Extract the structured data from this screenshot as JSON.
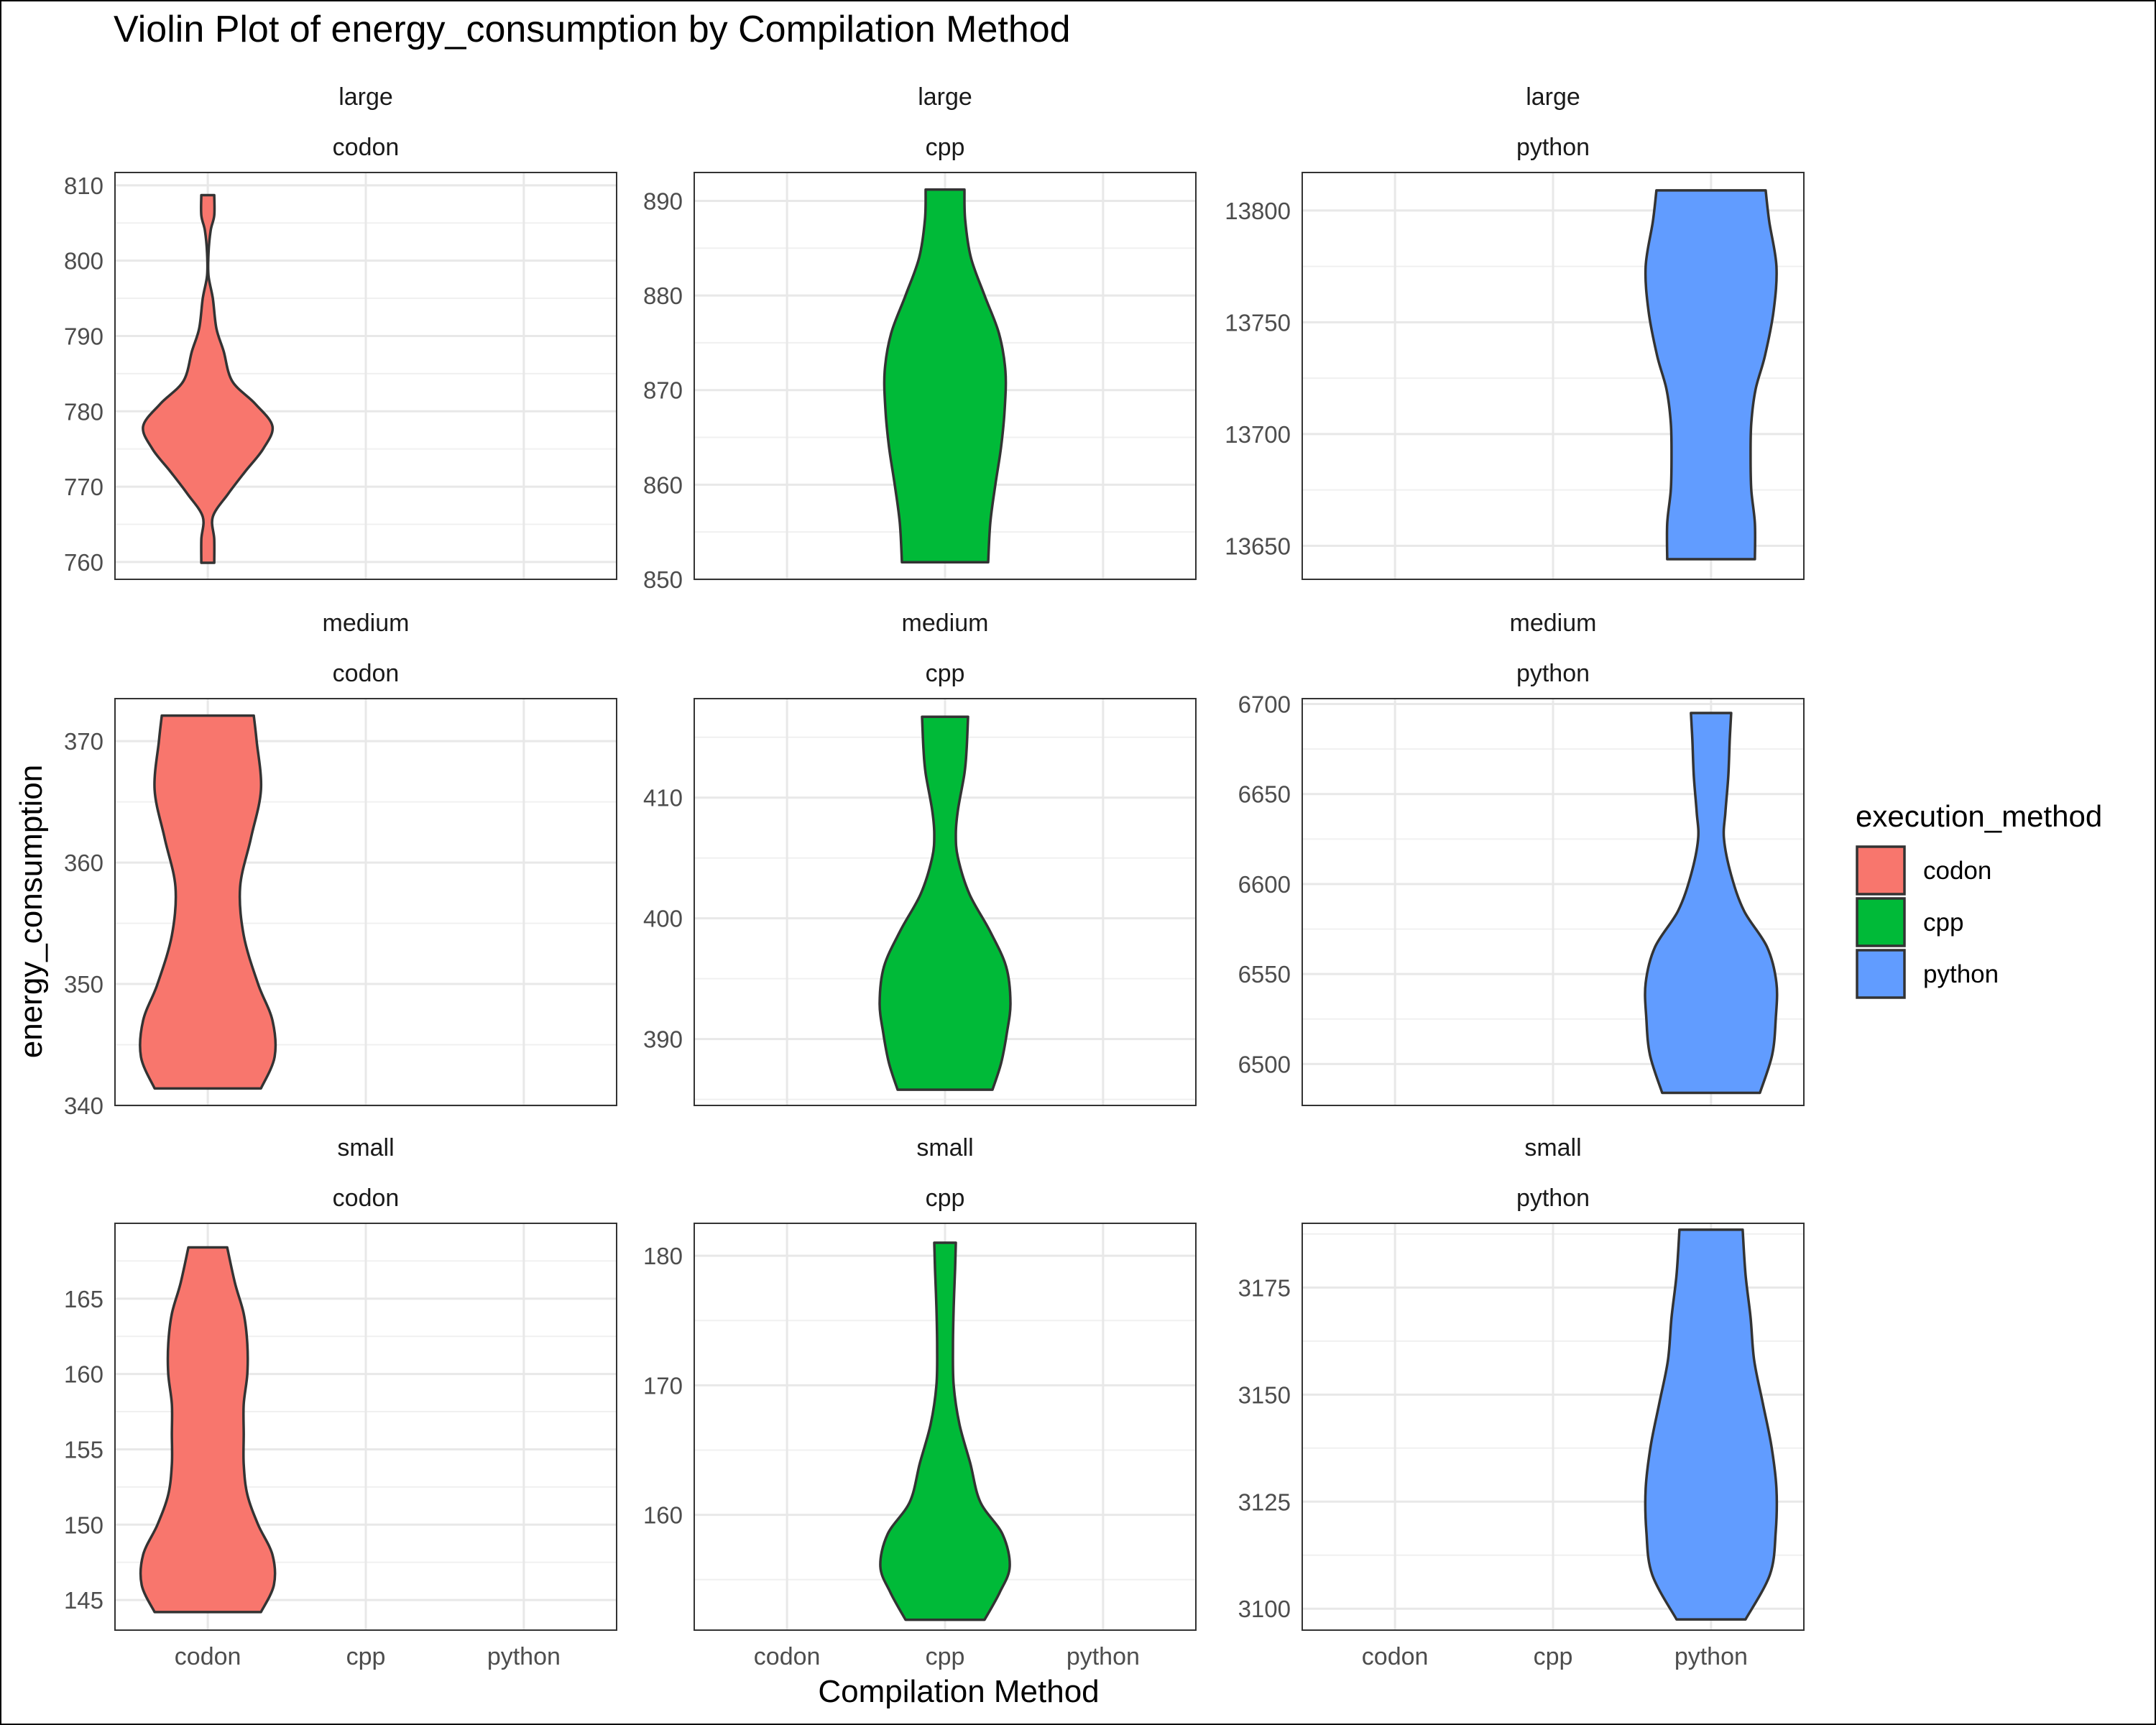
{
  "chart_data": {
    "type": "violin",
    "title": "Violin Plot of energy_consumption by Compilation Method",
    "xlabel": "Compilation Method",
    "ylabel": "energy_consumption",
    "x_categories": [
      "codon",
      "cpp",
      "python"
    ],
    "legend": {
      "title": "execution_method",
      "placement": "right",
      "entries": [
        {
          "label": "codon",
          "color": "#F8766D"
        },
        {
          "label": "cpp",
          "color": "#00BA38"
        },
        {
          "label": "python",
          "color": "#619CFF"
        }
      ]
    },
    "grid": true,
    "panels": [
      {
        "size": "large",
        "method": "codon",
        "category_index": 0,
        "ylim": [
          757.7,
          811.7
        ],
        "ticks": [
          760,
          770,
          780,
          790,
          800,
          810
        ],
        "violin": [
          [
            759.9,
            0.09
          ],
          [
            763,
            0.09
          ],
          [
            766,
            0.07
          ],
          [
            769,
            0.28
          ],
          [
            772,
            0.52
          ],
          [
            775,
            0.77
          ],
          [
            778,
            0.9
          ],
          [
            781,
            0.66
          ],
          [
            784,
            0.34
          ],
          [
            788,
            0.22
          ],
          [
            791,
            0.12
          ],
          [
            795,
            0.07
          ],
          [
            798,
            0.01
          ],
          [
            801,
            0.01
          ],
          [
            804,
            0.04
          ],
          [
            806,
            0.09
          ],
          [
            808.7,
            0.09
          ]
        ]
      },
      {
        "size": "large",
        "method": "cpp",
        "category_index": 1,
        "ylim": [
          850.0,
          893.0
        ],
        "ticks": [
          850,
          860,
          870,
          880,
          890
        ],
        "violin": [
          [
            851.8,
            0.6
          ],
          [
            856,
            0.63
          ],
          [
            860,
            0.7
          ],
          [
            864,
            0.78
          ],
          [
            868,
            0.83
          ],
          [
            872,
            0.84
          ],
          [
            876,
            0.75
          ],
          [
            880,
            0.55
          ],
          [
            884,
            0.36
          ],
          [
            888,
            0.28
          ],
          [
            891.2,
            0.27
          ]
        ]
      },
      {
        "size": "large",
        "method": "python",
        "category_index": 2,
        "ylim": [
          13635,
          13817
        ],
        "ticks": [
          13650,
          13700,
          13750,
          13800
        ],
        "violin": [
          [
            13644,
            0.61
          ],
          [
            13660,
            0.61
          ],
          [
            13675,
            0.56
          ],
          [
            13690,
            0.55
          ],
          [
            13705,
            0.56
          ],
          [
            13720,
            0.62
          ],
          [
            13735,
            0.75
          ],
          [
            13755,
            0.87
          ],
          [
            13775,
            0.91
          ],
          [
            13795,
            0.81
          ],
          [
            13809,
            0.76
          ]
        ]
      },
      {
        "size": "medium",
        "method": "codon",
        "category_index": 0,
        "ylim": [
          340.0,
          373.5
        ],
        "ticks": [
          340,
          350,
          360,
          370
        ],
        "violin": [
          [
            341.4,
            0.74
          ],
          [
            344,
            0.93
          ],
          [
            347,
            0.9
          ],
          [
            350,
            0.7
          ],
          [
            354,
            0.5
          ],
          [
            358,
            0.45
          ],
          [
            362,
            0.6
          ],
          [
            366,
            0.74
          ],
          [
            370,
            0.68
          ],
          [
            372.1,
            0.64
          ]
        ]
      },
      {
        "size": "medium",
        "method": "cpp",
        "category_index": 1,
        "ylim": [
          384.5,
          418.2
        ],
        "ticks": [
          390,
          400,
          410
        ],
        "violin": [
          [
            385.8,
            0.66
          ],
          [
            388,
            0.78
          ],
          [
            390.5,
            0.86
          ],
          [
            393,
            0.91
          ],
          [
            396,
            0.85
          ],
          [
            399,
            0.62
          ],
          [
            402,
            0.34
          ],
          [
            405,
            0.18
          ],
          [
            407,
            0.15
          ],
          [
            409,
            0.18
          ],
          [
            412,
            0.27
          ],
          [
            414,
            0.3
          ],
          [
            416.7,
            0.32
          ]
        ]
      },
      {
        "size": "medium",
        "method": "python",
        "category_index": 2,
        "ylim": [
          6477,
          6703
        ],
        "ticks": [
          6500,
          6550,
          6600,
          6650,
          6700
        ],
        "violin": [
          [
            6484,
            0.68
          ],
          [
            6505,
            0.85
          ],
          [
            6525,
            0.9
          ],
          [
            6545,
            0.91
          ],
          [
            6565,
            0.78
          ],
          [
            6585,
            0.46
          ],
          [
            6605,
            0.28
          ],
          [
            6625,
            0.18
          ],
          [
            6640,
            0.2
          ],
          [
            6660,
            0.24
          ],
          [
            6680,
            0.26
          ],
          [
            6695,
            0.28
          ]
        ]
      },
      {
        "size": "small",
        "method": "codon",
        "category_index": 0,
        "ylim": [
          143.0,
          170.0
        ],
        "ticks": [
          145,
          150,
          155,
          160,
          165
        ],
        "violin": [
          [
            144.2,
            0.74
          ],
          [
            146,
            0.92
          ],
          [
            148,
            0.9
          ],
          [
            150,
            0.7
          ],
          [
            152,
            0.55
          ],
          [
            154,
            0.5
          ],
          [
            156,
            0.5
          ],
          [
            158,
            0.5
          ],
          [
            160,
            0.55
          ],
          [
            162,
            0.55
          ],
          [
            164,
            0.5
          ],
          [
            166,
            0.38
          ],
          [
            168.4,
            0.27
          ]
        ]
      },
      {
        "size": "small",
        "method": "cpp",
        "category_index": 1,
        "ylim": [
          151.1,
          182.5
        ],
        "ticks": [
          160,
          170,
          180
        ],
        "violin": [
          [
            151.9,
            0.55
          ],
          [
            154,
            0.76
          ],
          [
            156,
            0.9
          ],
          [
            158.5,
            0.8
          ],
          [
            161,
            0.49
          ],
          [
            164,
            0.35
          ],
          [
            167,
            0.2
          ],
          [
            170,
            0.12
          ],
          [
            173,
            0.11
          ],
          [
            176,
            0.12
          ],
          [
            179,
            0.14
          ],
          [
            181,
            0.15
          ]
        ]
      },
      {
        "size": "small",
        "method": "python",
        "category_index": 2,
        "ylim": [
          3095,
          3190
        ],
        "ticks": [
          3100,
          3125,
          3150,
          3175
        ],
        "violin": [
          [
            3097.5,
            0.48
          ],
          [
            3108,
            0.82
          ],
          [
            3118,
            0.9
          ],
          [
            3128,
            0.91
          ],
          [
            3138,
            0.84
          ],
          [
            3148,
            0.72
          ],
          [
            3158,
            0.6
          ],
          [
            3168,
            0.55
          ],
          [
            3178,
            0.48
          ],
          [
            3188.5,
            0.44
          ]
        ]
      }
    ]
  }
}
